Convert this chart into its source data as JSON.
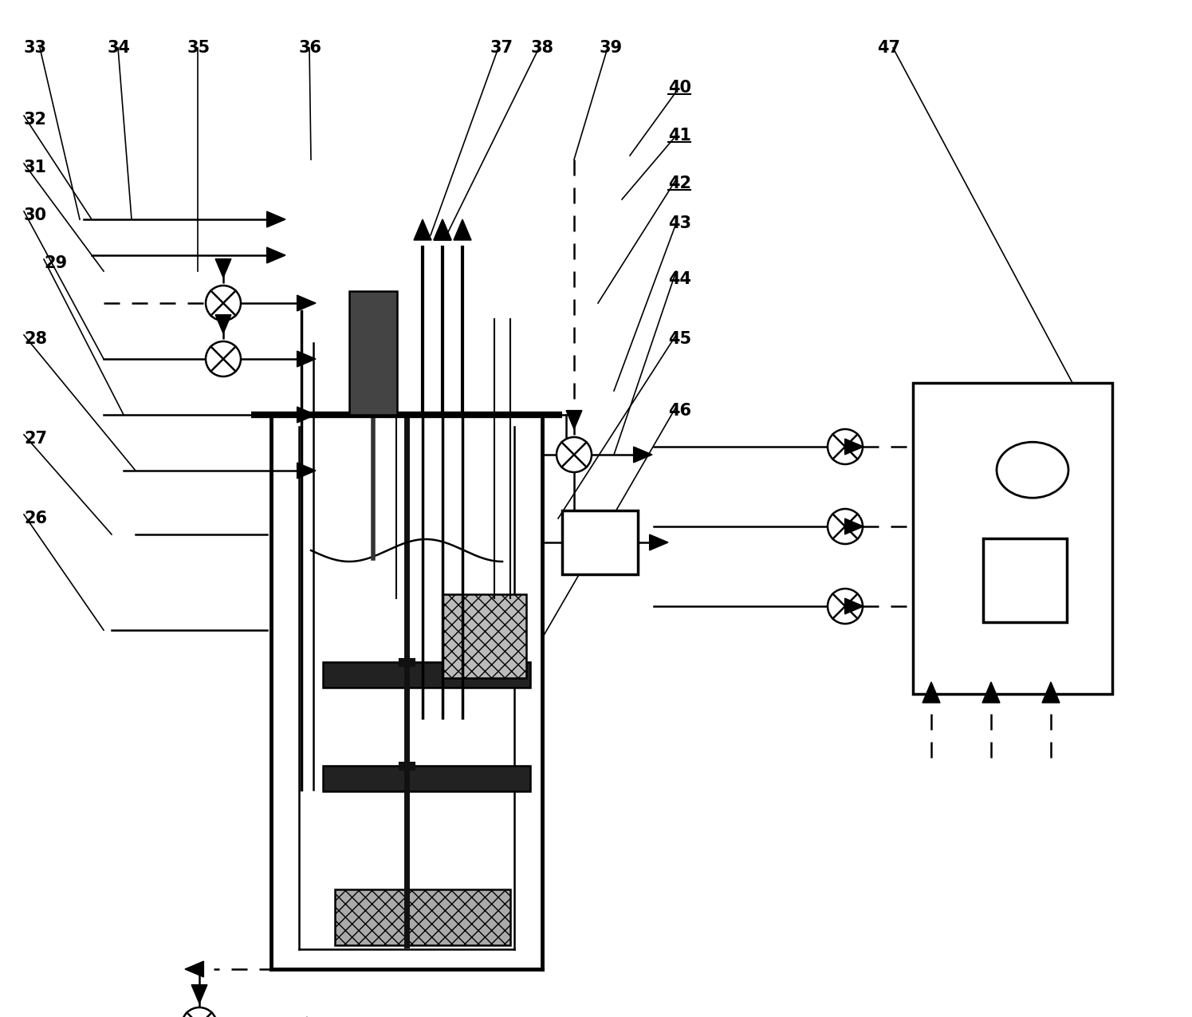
{
  "bg_color": "#ffffff",
  "line_color": "#000000",
  "figsize": [
    14.95,
    12.75
  ],
  "dpi": 100
}
